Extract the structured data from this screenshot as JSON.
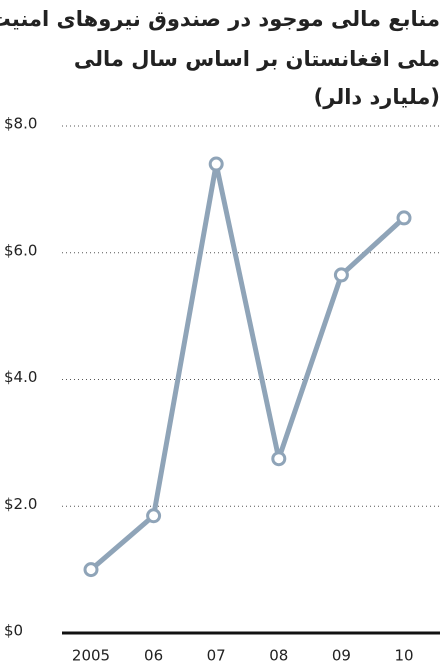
{
  "chart_data": {
    "type": "line",
    "title": [
      "منابع مالی موجود در صندوق نیروهای امنیت",
      "ملی افغانستان بر اساس سال مالی",
      "(ملیارد دالر)"
    ],
    "categories": [
      "2005",
      "06",
      "07",
      "08",
      "09",
      "10"
    ],
    "series": [
      {
        "color": "#8fa4b8",
        "values": [
          1.0,
          1.85,
          7.4,
          2.75,
          5.65,
          6.55
        ]
      }
    ],
    "ylim": [
      0,
      8
    ],
    "yticks": [
      {
        "value": 0,
        "label": "$0"
      },
      {
        "value": 2,
        "label": "$2.0"
      },
      {
        "value": 4,
        "label": "$4.0"
      },
      {
        "value": 6,
        "label": "$6.0"
      },
      {
        "value": 8,
        "label": "$8.0"
      }
    ],
    "grid": true
  }
}
